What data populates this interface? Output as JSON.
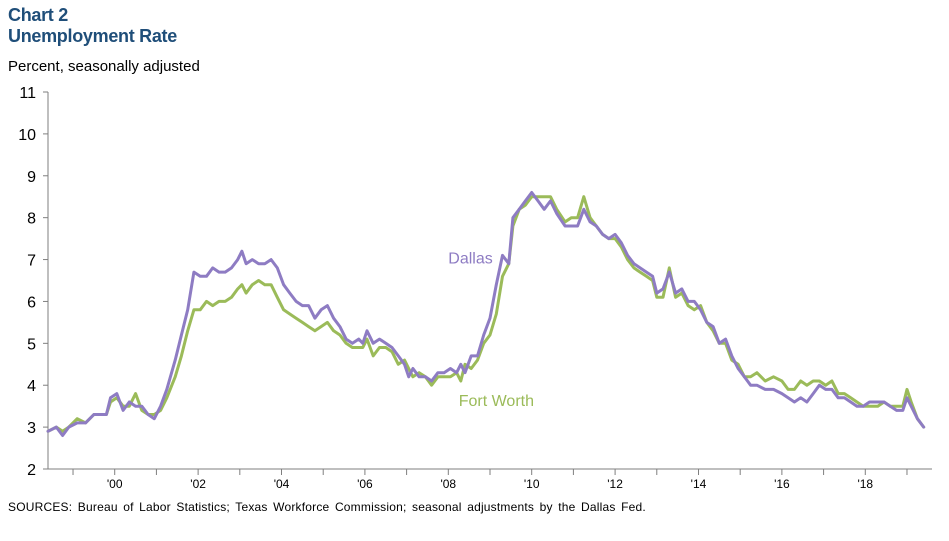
{
  "chart_title_line1": "Chart 2",
  "chart_title_line2": "Unemployment Rate",
  "unit_label": "Percent, seasonally adjusted",
  "source_note": "SOURCES: Bureau of Labor Statistics; Texas Workforce Commission; seasonal adjustments by the Dallas Fed.",
  "chart_data": {
    "type": "line",
    "title": "Unemployment Rate",
    "ylabel": "Percent, seasonally adjusted",
    "xlabel": "",
    "ylim": [
      2,
      11
    ],
    "yticks": [
      2,
      3,
      4,
      5,
      6,
      7,
      8,
      9,
      10,
      11
    ],
    "xlim": [
      1998.4,
      2019.6
    ],
    "xtick_labels": [
      {
        "x": 2000,
        "label": "'00"
      },
      {
        "x": 2002,
        "label": "'02"
      },
      {
        "x": 2004,
        "label": "'04"
      },
      {
        "x": 2006,
        "label": "'06"
      },
      {
        "x": 2008,
        "label": "'08"
      },
      {
        "x": 2010,
        "label": "'10"
      },
      {
        "x": 2012,
        "label": "'12"
      },
      {
        "x": 2014,
        "label": "'14"
      },
      {
        "x": 2016,
        "label": "'16"
      },
      {
        "x": 2018,
        "label": "'18"
      }
    ],
    "grid": false,
    "series": [
      {
        "name": "Dallas",
        "color": "#8e7cc3",
        "points": [
          [
            1998.4,
            2.9
          ],
          [
            1998.6,
            3.0
          ],
          [
            1998.75,
            2.8
          ],
          [
            1998.9,
            3.0
          ],
          [
            1999.1,
            3.1
          ],
          [
            1999.3,
            3.1
          ],
          [
            1999.5,
            3.3
          ],
          [
            1999.8,
            3.3
          ],
          [
            1999.9,
            3.7
          ],
          [
            2000.05,
            3.8
          ],
          [
            2000.2,
            3.4
          ],
          [
            2000.35,
            3.6
          ],
          [
            2000.5,
            3.5
          ],
          [
            2000.65,
            3.5
          ],
          [
            2000.8,
            3.3
          ],
          [
            2000.95,
            3.2
          ],
          [
            2001.1,
            3.5
          ],
          [
            2001.25,
            3.9
          ],
          [
            2001.45,
            4.6
          ],
          [
            2001.6,
            5.2
          ],
          [
            2001.75,
            5.8
          ],
          [
            2001.9,
            6.7
          ],
          [
            2002.05,
            6.6
          ],
          [
            2002.2,
            6.6
          ],
          [
            2002.35,
            6.8
          ],
          [
            2002.5,
            6.7
          ],
          [
            2002.65,
            6.7
          ],
          [
            2002.8,
            6.8
          ],
          [
            2002.95,
            7.0
          ],
          [
            2003.05,
            7.2
          ],
          [
            2003.15,
            6.9
          ],
          [
            2003.3,
            7.0
          ],
          [
            2003.45,
            6.9
          ],
          [
            2003.6,
            6.9
          ],
          [
            2003.75,
            7.0
          ],
          [
            2003.9,
            6.8
          ],
          [
            2004.05,
            6.4
          ],
          [
            2004.2,
            6.2
          ],
          [
            2004.35,
            6.0
          ],
          [
            2004.5,
            5.9
          ],
          [
            2004.65,
            5.9
          ],
          [
            2004.8,
            5.6
          ],
          [
            2004.95,
            5.8
          ],
          [
            2005.1,
            5.9
          ],
          [
            2005.25,
            5.6
          ],
          [
            2005.4,
            5.4
          ],
          [
            2005.55,
            5.1
          ],
          [
            2005.7,
            5.0
          ],
          [
            2005.85,
            5.1
          ],
          [
            2005.95,
            5.0
          ],
          [
            2006.05,
            5.3
          ],
          [
            2006.2,
            5.0
          ],
          [
            2006.35,
            5.1
          ],
          [
            2006.5,
            5.0
          ],
          [
            2006.65,
            4.9
          ],
          [
            2006.8,
            4.7
          ],
          [
            2006.95,
            4.5
          ],
          [
            2007.05,
            4.2
          ],
          [
            2007.15,
            4.4
          ],
          [
            2007.3,
            4.2
          ],
          [
            2007.45,
            4.2
          ],
          [
            2007.6,
            4.1
          ],
          [
            2007.75,
            4.3
          ],
          [
            2007.9,
            4.3
          ],
          [
            2008.05,
            4.4
          ],
          [
            2008.2,
            4.3
          ],
          [
            2008.3,
            4.5
          ],
          [
            2008.4,
            4.3
          ],
          [
            2008.55,
            4.7
          ],
          [
            2008.7,
            4.7
          ],
          [
            2008.85,
            5.2
          ],
          [
            2009.0,
            5.6
          ],
          [
            2009.15,
            6.4
          ],
          [
            2009.3,
            7.1
          ],
          [
            2009.45,
            6.9
          ],
          [
            2009.55,
            8.0
          ],
          [
            2009.7,
            8.2
          ],
          [
            2009.85,
            8.4
          ],
          [
            2010.0,
            8.6
          ],
          [
            2010.15,
            8.4
          ],
          [
            2010.3,
            8.2
          ],
          [
            2010.45,
            8.4
          ],
          [
            2010.6,
            8.1
          ],
          [
            2010.8,
            7.8
          ],
          [
            2010.95,
            7.8
          ],
          [
            2011.1,
            7.8
          ],
          [
            2011.25,
            8.2
          ],
          [
            2011.4,
            7.9
          ],
          [
            2011.55,
            7.8
          ],
          [
            2011.7,
            7.6
          ],
          [
            2011.85,
            7.5
          ],
          [
            2012.0,
            7.6
          ],
          [
            2012.15,
            7.4
          ],
          [
            2012.3,
            7.1
          ],
          [
            2012.45,
            6.9
          ],
          [
            2012.6,
            6.8
          ],
          [
            2012.75,
            6.7
          ],
          [
            2012.9,
            6.6
          ],
          [
            2013.0,
            6.2
          ],
          [
            2013.15,
            6.3
          ],
          [
            2013.3,
            6.7
          ],
          [
            2013.45,
            6.2
          ],
          [
            2013.6,
            6.3
          ],
          [
            2013.75,
            6.0
          ],
          [
            2013.9,
            6.0
          ],
          [
            2014.05,
            5.8
          ],
          [
            2014.2,
            5.5
          ],
          [
            2014.35,
            5.4
          ],
          [
            2014.5,
            5.0
          ],
          [
            2014.65,
            5.1
          ],
          [
            2014.8,
            4.7
          ],
          [
            2014.95,
            4.4
          ],
          [
            2015.1,
            4.2
          ],
          [
            2015.25,
            4.0
          ],
          [
            2015.4,
            4.0
          ],
          [
            2015.6,
            3.9
          ],
          [
            2015.8,
            3.9
          ],
          [
            2016.0,
            3.8
          ],
          [
            2016.15,
            3.7
          ],
          [
            2016.3,
            3.6
          ],
          [
            2016.45,
            3.7
          ],
          [
            2016.6,
            3.6
          ],
          [
            2016.75,
            3.8
          ],
          [
            2016.9,
            4.0
          ],
          [
            2017.05,
            3.9
          ],
          [
            2017.2,
            3.9
          ],
          [
            2017.35,
            3.7
          ],
          [
            2017.5,
            3.7
          ],
          [
            2017.65,
            3.6
          ],
          [
            2017.8,
            3.5
          ],
          [
            2017.95,
            3.5
          ],
          [
            2018.1,
            3.6
          ],
          [
            2018.3,
            3.6
          ],
          [
            2018.45,
            3.6
          ],
          [
            2018.6,
            3.5
          ],
          [
            2018.75,
            3.4
          ],
          [
            2018.9,
            3.4
          ],
          [
            2019.0,
            3.7
          ],
          [
            2019.1,
            3.5
          ],
          [
            2019.25,
            3.2
          ],
          [
            2019.4,
            3.0
          ]
        ]
      },
      {
        "name": "Fort Worth",
        "color": "#9bbb59",
        "points": [
          [
            1998.4,
            2.9
          ],
          [
            1998.6,
            3.0
          ],
          [
            1998.75,
            2.9
          ],
          [
            1998.9,
            3.0
          ],
          [
            1999.1,
            3.2
          ],
          [
            1999.3,
            3.1
          ],
          [
            1999.5,
            3.3
          ],
          [
            1999.8,
            3.3
          ],
          [
            1999.9,
            3.6
          ],
          [
            2000.05,
            3.7
          ],
          [
            2000.2,
            3.5
          ],
          [
            2000.35,
            3.5
          ],
          [
            2000.5,
            3.8
          ],
          [
            2000.65,
            3.4
          ],
          [
            2000.8,
            3.3
          ],
          [
            2000.95,
            3.3
          ],
          [
            2001.1,
            3.4
          ],
          [
            2001.25,
            3.7
          ],
          [
            2001.45,
            4.2
          ],
          [
            2001.6,
            4.7
          ],
          [
            2001.75,
            5.3
          ],
          [
            2001.9,
            5.8
          ],
          [
            2002.05,
            5.8
          ],
          [
            2002.2,
            6.0
          ],
          [
            2002.35,
            5.9
          ],
          [
            2002.5,
            6.0
          ],
          [
            2002.65,
            6.0
          ],
          [
            2002.8,
            6.1
          ],
          [
            2002.95,
            6.3
          ],
          [
            2003.05,
            6.4
          ],
          [
            2003.15,
            6.2
          ],
          [
            2003.3,
            6.4
          ],
          [
            2003.45,
            6.5
          ],
          [
            2003.6,
            6.4
          ],
          [
            2003.75,
            6.4
          ],
          [
            2003.9,
            6.1
          ],
          [
            2004.05,
            5.8
          ],
          [
            2004.2,
            5.7
          ],
          [
            2004.35,
            5.6
          ],
          [
            2004.5,
            5.5
          ],
          [
            2004.65,
            5.4
          ],
          [
            2004.8,
            5.3
          ],
          [
            2004.95,
            5.4
          ],
          [
            2005.1,
            5.5
          ],
          [
            2005.25,
            5.3
          ],
          [
            2005.4,
            5.2
          ],
          [
            2005.55,
            5.0
          ],
          [
            2005.7,
            4.9
          ],
          [
            2005.85,
            4.9
          ],
          [
            2005.95,
            4.9
          ],
          [
            2006.05,
            5.1
          ],
          [
            2006.2,
            4.7
          ],
          [
            2006.35,
            4.9
          ],
          [
            2006.5,
            4.9
          ],
          [
            2006.65,
            4.8
          ],
          [
            2006.8,
            4.5
          ],
          [
            2006.95,
            4.6
          ],
          [
            2007.05,
            4.4
          ],
          [
            2007.15,
            4.2
          ],
          [
            2007.3,
            4.3
          ],
          [
            2007.45,
            4.2
          ],
          [
            2007.6,
            4.0
          ],
          [
            2007.75,
            4.2
          ],
          [
            2007.9,
            4.2
          ],
          [
            2008.05,
            4.2
          ],
          [
            2008.2,
            4.3
          ],
          [
            2008.3,
            4.1
          ],
          [
            2008.4,
            4.5
          ],
          [
            2008.55,
            4.4
          ],
          [
            2008.7,
            4.6
          ],
          [
            2008.85,
            5.0
          ],
          [
            2009.0,
            5.2
          ],
          [
            2009.15,
            5.7
          ],
          [
            2009.3,
            6.6
          ],
          [
            2009.45,
            6.9
          ],
          [
            2009.55,
            7.8
          ],
          [
            2009.7,
            8.2
          ],
          [
            2009.85,
            8.3
          ],
          [
            2010.0,
            8.5
          ],
          [
            2010.15,
            8.5
          ],
          [
            2010.3,
            8.5
          ],
          [
            2010.45,
            8.5
          ],
          [
            2010.6,
            8.2
          ],
          [
            2010.8,
            7.9
          ],
          [
            2010.95,
            8.0
          ],
          [
            2011.1,
            8.0
          ],
          [
            2011.25,
            8.5
          ],
          [
            2011.4,
            8.0
          ],
          [
            2011.55,
            7.8
          ],
          [
            2011.7,
            7.6
          ],
          [
            2011.85,
            7.5
          ],
          [
            2012.0,
            7.5
          ],
          [
            2012.15,
            7.3
          ],
          [
            2012.3,
            7.0
          ],
          [
            2012.45,
            6.8
          ],
          [
            2012.6,
            6.7
          ],
          [
            2012.75,
            6.6
          ],
          [
            2012.9,
            6.5
          ],
          [
            2013.0,
            6.1
          ],
          [
            2013.15,
            6.1
          ],
          [
            2013.3,
            6.8
          ],
          [
            2013.45,
            6.1
          ],
          [
            2013.6,
            6.2
          ],
          [
            2013.75,
            5.9
          ],
          [
            2013.9,
            5.8
          ],
          [
            2014.05,
            5.9
          ],
          [
            2014.2,
            5.5
          ],
          [
            2014.35,
            5.3
          ],
          [
            2014.5,
            5.0
          ],
          [
            2014.65,
            5.0
          ],
          [
            2014.8,
            4.6
          ],
          [
            2014.95,
            4.5
          ],
          [
            2015.1,
            4.2
          ],
          [
            2015.25,
            4.2
          ],
          [
            2015.4,
            4.3
          ],
          [
            2015.6,
            4.1
          ],
          [
            2015.8,
            4.2
          ],
          [
            2016.0,
            4.1
          ],
          [
            2016.15,
            3.9
          ],
          [
            2016.3,
            3.9
          ],
          [
            2016.45,
            4.1
          ],
          [
            2016.6,
            4.0
          ],
          [
            2016.75,
            4.1
          ],
          [
            2016.9,
            4.1
          ],
          [
            2017.05,
            4.0
          ],
          [
            2017.2,
            4.1
          ],
          [
            2017.35,
            3.8
          ],
          [
            2017.5,
            3.8
          ],
          [
            2017.65,
            3.7
          ],
          [
            2017.8,
            3.6
          ],
          [
            2017.95,
            3.5
          ],
          [
            2018.1,
            3.5
          ],
          [
            2018.3,
            3.5
          ],
          [
            2018.45,
            3.6
          ],
          [
            2018.6,
            3.5
          ],
          [
            2018.75,
            3.5
          ],
          [
            2018.9,
            3.5
          ],
          [
            2019.0,
            3.9
          ],
          [
            2019.1,
            3.6
          ],
          [
            2019.25,
            3.2
          ],
          [
            2019.4,
            3.0
          ]
        ]
      }
    ],
    "annotations": [
      {
        "text": "Dallas",
        "x": 2008.0,
        "y": 6.9,
        "color": "#8e7cc3"
      },
      {
        "text": "Fort Worth",
        "x": 2008.25,
        "y": 3.5,
        "color": "#9bbb59"
      }
    ]
  }
}
